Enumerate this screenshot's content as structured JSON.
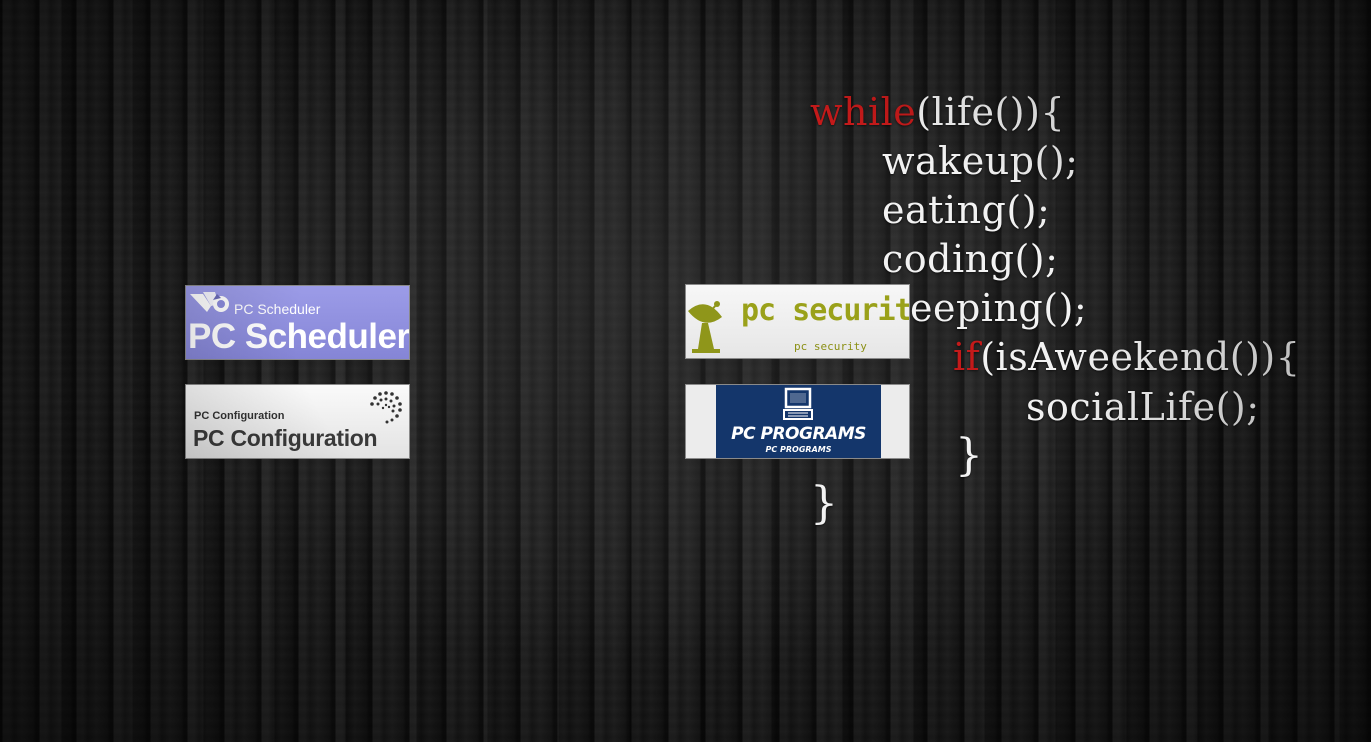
{
  "wallpaper": {
    "code_lines": {
      "line1_kw": "while",
      "line1_rest": "(life()){",
      "line2": "wakeup();",
      "line3": "eating();",
      "line4": "coding();",
      "line5": "eeping();",
      "line6_kw": "if",
      "line6_rest": "(isAweekend()){",
      "line7": "socialLife();",
      "line8": "}",
      "line9": "}"
    },
    "colors": {
      "keyword": "#c41a1a",
      "code_text": "#f2f2f2"
    }
  },
  "shortcuts": [
    {
      "id": "pc-scheduler",
      "small_label": "PC Scheduler",
      "big_label": "PC Scheduler",
      "icon": "bird-logo-icon",
      "background": "#8f8fdf"
    },
    {
      "id": "pc-configuration",
      "small_label": "PC Configuration",
      "big_label": "PC Configuration",
      "icon": "spiral-dots-icon",
      "background": "#efefef"
    },
    {
      "id": "pc-security",
      "small_label": "pc security",
      "big_label": "pc security",
      "icon": "satellite-dish-icon",
      "background": "#f2f2f2"
    },
    {
      "id": "pc-programs",
      "small_label": "PC PROGRAMS",
      "big_label": "PC PROGRAMS",
      "icon": "computer-monitor-icon",
      "background": "#14366b"
    }
  ]
}
